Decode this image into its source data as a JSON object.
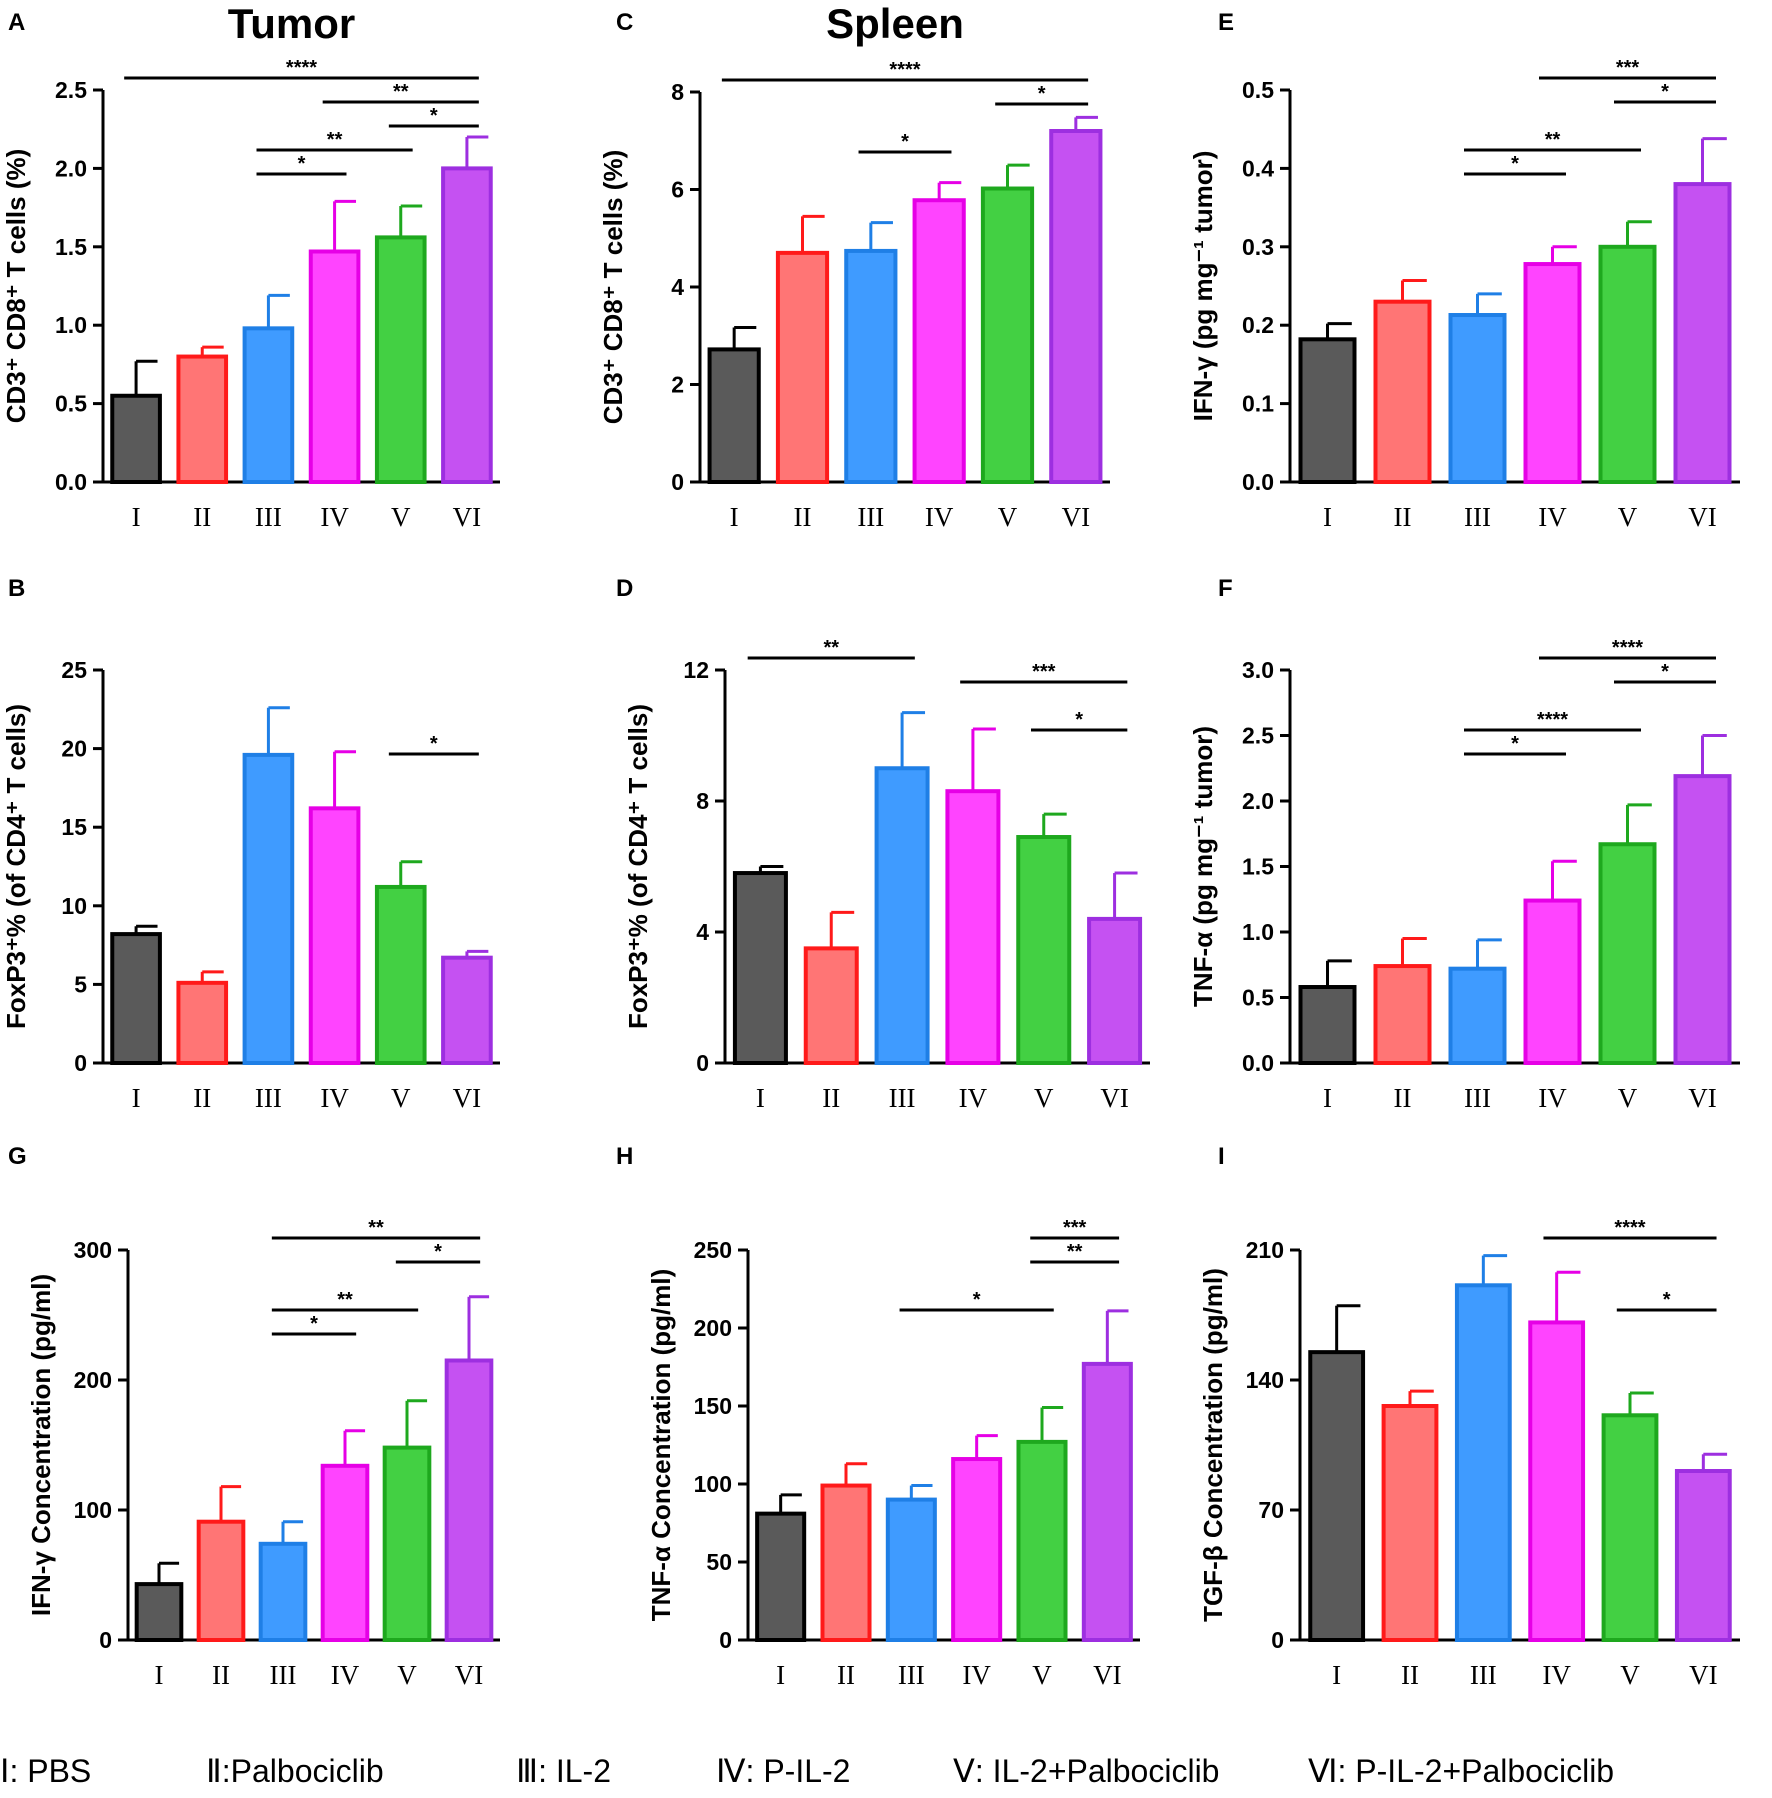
{
  "figure": {
    "column_titles": [
      "Tumor",
      "Spleen"
    ],
    "legend": [
      "Ⅰ: PBS",
      "Ⅱ:Palbociclib",
      "Ⅲ: IL-2",
      "Ⅳ: P-IL-2",
      "Ⅴ: IL-2+Palbociclib",
      "Ⅵ: P-IL-2+Palbociclib"
    ],
    "colors": {
      "I": "#5a5a5a",
      "II": "#ff7575",
      "III": "#3f9bff",
      "IV": "#ff44ff",
      "V": "#43d043",
      "VI": "#c551f2",
      "border_I": "#000000",
      "border_II": "#ff1a1a",
      "border_III": "#1f7fe6",
      "border_IV": "#e600e6",
      "border_V": "#1ea81e",
      "border_VI": "#9d2fe0"
    }
  },
  "chart_data": [
    {
      "panel": "A",
      "type": "bar",
      "title": "Tumor",
      "categories": [
        "I",
        "II",
        "III",
        "IV",
        "V",
        "VI"
      ],
      "values": [
        0.55,
        0.8,
        0.98,
        1.47,
        1.56,
        2.0
      ],
      "errors": [
        0.22,
        0.06,
        0.21,
        0.32,
        0.2,
        0.2
      ],
      "ylabel": "CD3⁺ CD8⁺ T cells (%)",
      "ylim": [
        0,
        2.5
      ],
      "yticks": [
        "0.0",
        "0.5",
        "1.0",
        "1.5",
        "2.0",
        "2.5"
      ],
      "significance": [
        {
          "from": 0,
          "to": 5,
          "level": 0,
          "label": "****"
        },
        {
          "from": 3,
          "to": 5,
          "level": 1,
          "label": "**"
        },
        {
          "from": 4,
          "to": 5,
          "level": 2,
          "label": "*"
        },
        {
          "from": 2,
          "to": 4,
          "level": 3,
          "label": "**"
        },
        {
          "from": 2,
          "to": 3,
          "level": 4,
          "label": "*"
        }
      ]
    },
    {
      "panel": "C",
      "type": "bar",
      "title": "Spleen",
      "categories": [
        "I",
        "II",
        "III",
        "IV",
        "V",
        "VI"
      ],
      "values": [
        2.72,
        4.7,
        4.74,
        5.78,
        6.02,
        7.2
      ],
      "errors": [
        0.45,
        0.75,
        0.58,
        0.36,
        0.48,
        0.28
      ],
      "ylabel": "CD3⁺ CD8⁺ T cells (%)",
      "ylim": [
        0,
        8
      ],
      "yticks": [
        "0",
        "2",
        "4",
        "6",
        "8"
      ],
      "significance": [
        {
          "from": 0,
          "to": 5,
          "level": 0,
          "label": "****"
        },
        {
          "from": 4,
          "to": 5,
          "level": 1,
          "label": "*"
        },
        {
          "from": 2,
          "to": 3,
          "level": 3,
          "label": "*"
        }
      ]
    },
    {
      "panel": "E",
      "type": "bar",
      "title": "",
      "categories": [
        "I",
        "II",
        "III",
        "IV",
        "V",
        "VI"
      ],
      "values": [
        0.182,
        0.23,
        0.213,
        0.278,
        0.3,
        0.38
      ],
      "errors": [
        0.02,
        0.027,
        0.027,
        0.022,
        0.032,
        0.058
      ],
      "ylabel": "IFN-γ  (pg mg⁻¹ tumor)",
      "ylim": [
        0,
        0.5
      ],
      "yticks": [
        "0.0",
        "0.1",
        "0.2",
        "0.3",
        "0.4",
        "0.5"
      ],
      "significance": [
        {
          "from": 3,
          "to": 5,
          "level": 0,
          "label": "***"
        },
        {
          "from": 4,
          "to": 5,
          "level": 1,
          "label": "*"
        },
        {
          "from": 2,
          "to": 4,
          "level": 3,
          "label": "**"
        },
        {
          "from": 2,
          "to": 3,
          "level": 4,
          "label": "*"
        }
      ]
    },
    {
      "panel": "B",
      "type": "bar",
      "title": "",
      "categories": [
        "I",
        "II",
        "III",
        "IV",
        "V",
        "VI"
      ],
      "values": [
        8.2,
        5.1,
        19.6,
        16.2,
        11.2,
        6.7
      ],
      "errors": [
        0.5,
        0.7,
        3.0,
        3.6,
        1.6,
        0.4
      ],
      "ylabel": "FoxP3⁺% (of CD4⁺ T cells)",
      "ylim": [
        0,
        25
      ],
      "yticks": [
        "0",
        "5",
        "10",
        "15",
        "20",
        "25"
      ],
      "significance": [
        {
          "from": 4,
          "to": 5,
          "level": 4,
          "label": "*"
        }
      ]
    },
    {
      "panel": "D",
      "type": "bar",
      "title": "",
      "categories": [
        "I",
        "II",
        "III",
        "IV",
        "V",
        "VI"
      ],
      "values": [
        5.8,
        3.5,
        9.0,
        8.3,
        6.9,
        4.4
      ],
      "errors": [
        0.2,
        1.1,
        1.7,
        1.9,
        0.7,
        1.4
      ],
      "ylabel": "FoxP3⁺% (of CD4⁺ T cells)",
      "ylim": [
        0,
        12
      ],
      "yticks": [
        "0",
        "4",
        "8",
        "12"
      ],
      "significance": [
        {
          "from": 0,
          "to": 2,
          "level": 0,
          "label": "**"
        },
        {
          "from": 3,
          "to": 5,
          "level": 1,
          "label": "***"
        },
        {
          "from": 4,
          "to": 5,
          "level": 3,
          "label": "*"
        }
      ]
    },
    {
      "panel": "F",
      "type": "bar",
      "title": "",
      "categories": [
        "I",
        "II",
        "III",
        "IV",
        "V",
        "VI"
      ],
      "values": [
        0.58,
        0.74,
        0.72,
        1.24,
        1.67,
        2.19
      ],
      "errors": [
        0.2,
        0.21,
        0.22,
        0.3,
        0.3,
        0.31
      ],
      "ylabel": "TNF-α  (pg mg⁻¹ tumor)",
      "ylim": [
        0,
        3
      ],
      "yticks": [
        "0.0",
        "0.5",
        "1.0",
        "1.5",
        "2.0",
        "2.5",
        "3.0"
      ],
      "significance": [
        {
          "from": 3,
          "to": 5,
          "level": 0,
          "label": "****"
        },
        {
          "from": 4,
          "to": 5,
          "level": 1,
          "label": "*"
        },
        {
          "from": 2,
          "to": 4,
          "level": 3,
          "label": "****"
        },
        {
          "from": 2,
          "to": 3,
          "level": 4,
          "label": "*"
        }
      ]
    },
    {
      "panel": "G",
      "type": "bar",
      "title": "",
      "categories": [
        "I",
        "II",
        "III",
        "IV",
        "V",
        "VI"
      ],
      "values": [
        43,
        91,
        74,
        134,
        148,
        215
      ],
      "errors": [
        16,
        27,
        17,
        27,
        36,
        49
      ],
      "ylabel": "IFN-γ Concentration (pg/ml)",
      "ylim": [
        0,
        300
      ],
      "yticks": [
        "0",
        "100",
        "200",
        "300"
      ],
      "significance": [
        {
          "from": 2,
          "to": 5,
          "level": 0,
          "label": "**"
        },
        {
          "from": 4,
          "to": 5,
          "level": 1,
          "label": "*"
        },
        {
          "from": 2,
          "to": 4,
          "level": 3,
          "label": "**"
        },
        {
          "from": 2,
          "to": 3,
          "level": 4,
          "label": "*"
        }
      ]
    },
    {
      "panel": "H",
      "type": "bar",
      "title": "",
      "categories": [
        "I",
        "II",
        "III",
        "IV",
        "V",
        "VI"
      ],
      "values": [
        81,
        99,
        90,
        116,
        127,
        177
      ],
      "errors": [
        12,
        14,
        9,
        15,
        22,
        34
      ],
      "ylabel": "TNF-α Concentration (pg/ml)",
      "ylim": [
        0,
        250
      ],
      "yticks": [
        "0",
        "50",
        "100",
        "150",
        "200",
        "250"
      ],
      "significance": [
        {
          "from": 4,
          "to": 5,
          "level": 0,
          "label": "***"
        },
        {
          "from": 4,
          "to": 5,
          "level": 1,
          "label": "**"
        },
        {
          "from": 2,
          "to": 4,
          "level": 3,
          "label": "*"
        }
      ]
    },
    {
      "panel": "I",
      "type": "bar",
      "title": "",
      "categories": [
        "I",
        "II",
        "III",
        "IV",
        "V",
        "VI"
      ],
      "values": [
        155,
        126,
        191,
        171,
        121,
        91
      ],
      "errors": [
        25,
        8,
        16,
        27,
        12,
        9
      ],
      "ylabel": "TGF-β Concentration (pg/ml)",
      "ylim": [
        0,
        210
      ],
      "yticks": [
        "0",
        "70",
        "140",
        "210"
      ],
      "significance": [
        {
          "from": 3,
          "to": 5,
          "level": 0,
          "label": "****"
        },
        {
          "from": 4,
          "to": 5,
          "level": 3,
          "label": "*"
        }
      ]
    }
  ]
}
